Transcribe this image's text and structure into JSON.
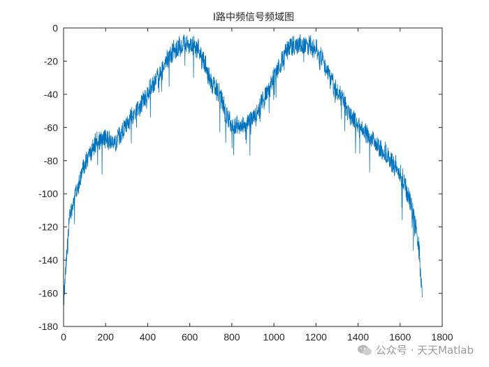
{
  "chart_data": {
    "type": "line",
    "title": "I路中频信号频域图",
    "xlabel": "",
    "ylabel": "",
    "xlim": [
      0,
      1800
    ],
    "ylim": [
      -180,
      0
    ],
    "xticks": [
      0,
      200,
      400,
      600,
      800,
      1000,
      1200,
      1400,
      1600,
      1800
    ],
    "yticks": [
      0,
      -20,
      -40,
      -60,
      -80,
      -100,
      -120,
      -140,
      -160,
      -180
    ],
    "grid": false,
    "series": [
      {
        "color": "#0072BD",
        "envelope_x": [
          1,
          5,
          10,
          20,
          30,
          50,
          75,
          100,
          150,
          200,
          240,
          280,
          320,
          360,
          400,
          440,
          480,
          520,
          560,
          600,
          640,
          660,
          700,
          740,
          780,
          800,
          850,
          900,
          940,
          980,
          1020,
          1060,
          1100,
          1150,
          1200,
          1240,
          1280,
          1320,
          1360,
          1400,
          1440,
          1480,
          1520,
          1560,
          1600,
          1640,
          1670,
          1690,
          1700,
          1705
        ],
        "envelope_y": [
          -160,
          -152,
          -140,
          -122,
          -110,
          -98,
          -88,
          -78,
          -66,
          -62,
          -66,
          -58,
          -50,
          -44,
          -35,
          -28,
          -18,
          -10,
          -7,
          -6,
          -8,
          -14,
          -28,
          -36,
          -50,
          -54,
          -54,
          -52,
          -42,
          -32,
          -20,
          -10,
          -6,
          -6,
          -8,
          -18,
          -30,
          -38,
          -48,
          -56,
          -60,
          -64,
          -70,
          -76,
          -84,
          -96,
          -112,
          -130,
          -148,
          -162
        ],
        "noise_amplitude": 8
      }
    ]
  },
  "watermark": {
    "text": "公众号 · 天天Matlab"
  }
}
